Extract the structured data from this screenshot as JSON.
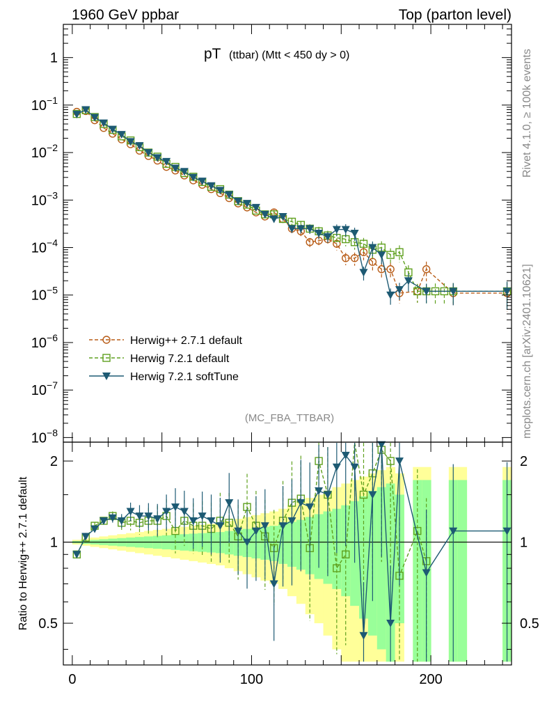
{
  "header": {
    "left": "1960 GeV ppbar",
    "right": "Top (parton level)"
  },
  "side": {
    "top": "Rivet 4.1.0, ≥ 100k events",
    "bottom": "mcplots.cern.ch [arXiv:2401.10621]"
  },
  "colors": {
    "herwigpp": "#b85c17",
    "herwig721": "#5fa01e",
    "softtune": "#1d5a73",
    "band_yellow": "#ffff99",
    "band_green": "#99ff99"
  },
  "chart_data": [
    {
      "id": "main",
      "type": "line",
      "title": "pT",
      "title_suffix": "(ttbar) (Mtt < 450 dy > 0)",
      "watermark": "(MC_FBA_TTBAR)",
      "yscale": "log",
      "xlim": [
        -5,
        245
      ],
      "ylim": [
        8e-09,
        5
      ],
      "yticks": [
        {
          "v": 1,
          "label": "1"
        },
        {
          "v": 0.1,
          "label": "10",
          "exp": "−1"
        },
        {
          "v": 0.01,
          "label": "10",
          "exp": "−2"
        },
        {
          "v": 0.001,
          "label": "10",
          "exp": "−3"
        },
        {
          "v": 0.0001,
          "label": "10",
          "exp": "−4"
        },
        {
          "v": 1e-05,
          "label": "10",
          "exp": "−5"
        },
        {
          "v": 1e-06,
          "label": "10",
          "exp": "−6"
        },
        {
          "v": 1e-07,
          "label": "10",
          "exp": "−7"
        },
        {
          "v": 1e-08,
          "label": "10",
          "exp": "−8"
        }
      ],
      "legend_position": "bottom-left",
      "series": [
        {
          "name": "Herwig++ 2.7.1 default",
          "style": "circle",
          "x": [
            2.5,
            7.5,
            12.5,
            17.5,
            22.5,
            27.5,
            32.5,
            37.5,
            42.5,
            47.5,
            52.5,
            57.5,
            62.5,
            67.5,
            72.5,
            77.5,
            82.5,
            87.5,
            92.5,
            97.5,
            102.5,
            107.5,
            112.5,
            117.5,
            122.5,
            127.5,
            132.5,
            137.5,
            142.5,
            147.5,
            152.5,
            157.5,
            162.5,
            167.5,
            172.5,
            177.5,
            182.5,
            192.5,
            197.5,
            212.5,
            242.5
          ],
          "y": [
            0.072,
            0.075,
            0.048,
            0.033,
            0.025,
            0.019,
            0.015,
            0.011,
            0.0085,
            0.0068,
            0.005,
            0.0042,
            0.0033,
            0.0026,
            0.0021,
            0.0017,
            0.0014,
            0.0011,
            0.00085,
            0.0007,
            0.00055,
            0.00045,
            0.00055,
            0.0004,
            0.00025,
            0.00022,
            0.00013,
            0.00014,
            0.00015,
            0.00012,
            6e-05,
            6e-05,
            8e-05,
            5e-05,
            3.5e-05,
            3.5e-05,
            1.1e-05,
            1.2e-05,
            3.5e-05,
            1.1e-05,
            1.1e-05
          ]
        },
        {
          "name": "Herwig 7.2.1 default",
          "style": "square",
          "x": [
            2.5,
            7.5,
            12.5,
            17.5,
            22.5,
            27.5,
            32.5,
            37.5,
            42.5,
            47.5,
            52.5,
            57.5,
            62.5,
            67.5,
            72.5,
            77.5,
            82.5,
            87.5,
            92.5,
            97.5,
            102.5,
            107.5,
            112.5,
            117.5,
            122.5,
            127.5,
            132.5,
            137.5,
            142.5,
            147.5,
            152.5,
            157.5,
            162.5,
            167.5,
            172.5,
            177.5,
            182.5,
            187.5,
            192.5,
            197.5,
            202.5,
            207.5,
            212.5,
            242.5
          ],
          "y": [
            0.065,
            0.078,
            0.056,
            0.04,
            0.03,
            0.022,
            0.018,
            0.013,
            0.01,
            0.0082,
            0.0058,
            0.005,
            0.0037,
            0.0031,
            0.0024,
            0.0019,
            0.0017,
            0.0013,
            0.00095,
            0.0008,
            0.0006,
            0.0005,
            0.0005,
            0.0004,
            0.00035,
            0.0003,
            0.00025,
            0.00022,
            0.00018,
            0.00016,
            0.00015,
            0.00013,
            0.00012,
            9e-05,
            0.0001,
            7e-05,
            8e-05,
            3e-05,
            1.2e-05,
            1.2e-05,
            1.2e-05,
            1.2e-05,
            1.2e-05,
            1.2e-05
          ]
        },
        {
          "name": "Herwig 7.2.1 softTune",
          "style": "triangle",
          "x": [
            2.5,
            7.5,
            12.5,
            17.5,
            22.5,
            27.5,
            32.5,
            37.5,
            42.5,
            47.5,
            52.5,
            57.5,
            62.5,
            67.5,
            72.5,
            77.5,
            82.5,
            87.5,
            92.5,
            97.5,
            102.5,
            107.5,
            112.5,
            117.5,
            122.5,
            127.5,
            132.5,
            137.5,
            142.5,
            147.5,
            152.5,
            157.5,
            162.5,
            167.5,
            172.5,
            177.5,
            182.5,
            187.5,
            197.5,
            212.5,
            242.5
          ],
          "y": [
            0.064,
            0.08,
            0.055,
            0.042,
            0.031,
            0.024,
            0.017,
            0.014,
            0.01,
            0.0078,
            0.0065,
            0.0047,
            0.004,
            0.003,
            0.0025,
            0.002,
            0.0016,
            0.0013,
            0.00095,
            0.00085,
            0.0007,
            0.0005,
            0.0004,
            0.00045,
            0.00025,
            0.00025,
            0.00025,
            0.0002,
            0.00017,
            0.00024,
            0.00024,
            0.0002,
            3e-05,
            0.0001,
            7e-05,
            1e-05,
            1.3e-05,
            2e-05,
            1.2e-05,
            1.2e-05,
            1.2e-05
          ]
        }
      ]
    },
    {
      "id": "ratio",
      "type": "line",
      "ylabel": "Ratio to Herwig++ 2.7.1 default",
      "yscale": "log",
      "xlim": [
        -5,
        245
      ],
      "ylim": [
        0.35,
        2.35
      ],
      "yticks": [
        {
          "v": 0.5,
          "label": "0.5"
        },
        {
          "v": 1,
          "label": "1"
        },
        {
          "v": 2,
          "label": "2"
        }
      ],
      "xticks": [
        {
          "v": 0,
          "label": "0"
        },
        {
          "v": 100,
          "label": "100"
        },
        {
          "v": 200,
          "label": "200"
        }
      ],
      "reference_line": 1,
      "bands": {
        "x_edges": [
          0,
          5,
          10,
          15,
          20,
          25,
          30,
          35,
          40,
          45,
          50,
          55,
          60,
          65,
          70,
          75,
          80,
          85,
          90,
          95,
          100,
          105,
          110,
          115,
          120,
          125,
          130,
          135,
          140,
          145,
          150,
          155,
          160,
          165,
          170,
          175,
          180,
          185,
          190,
          195,
          200,
          205,
          210,
          215,
          220,
          225,
          230,
          235,
          240,
          245
        ],
        "green_halfwidth": [
          0.01,
          0.015,
          0.02,
          0.025,
          0.03,
          0.035,
          0.04,
          0.045,
          0.05,
          0.055,
          0.06,
          0.065,
          0.07,
          0.075,
          0.08,
          0.085,
          0.09,
          0.1,
          0.11,
          0.12,
          0.13,
          0.14,
          0.15,
          0.17,
          0.19,
          0.21,
          0.24,
          0.27,
          0.3,
          0.33,
          0.37,
          0.42,
          0.48,
          0.55,
          0.6,
          0.65,
          0.5,
          0,
          0.7,
          0.7,
          0,
          0,
          0.7,
          0.7,
          0,
          0,
          0,
          0,
          0.7
        ],
        "yellow_halfwidth": [
          0.02,
          0.03,
          0.04,
          0.05,
          0.06,
          0.07,
          0.08,
          0.09,
          0.1,
          0.11,
          0.12,
          0.13,
          0.14,
          0.15,
          0.16,
          0.17,
          0.18,
          0.2,
          0.22,
          0.24,
          0.26,
          0.28,
          0.3,
          0.33,
          0.37,
          0.41,
          0.46,
          0.5,
          0.55,
          0.6,
          0.65,
          0.7,
          0.75,
          0.8,
          0.85,
          0.9,
          0.8,
          0,
          0.9,
          0.9,
          0,
          0,
          0.9,
          0.9,
          0,
          0,
          0,
          0,
          0.9
        ]
      },
      "series": [
        {
          "name": "Herwig 7.2.1 default",
          "style": "square",
          "x": [
            2.5,
            7.5,
            12.5,
            17.5,
            22.5,
            27.5,
            32.5,
            37.5,
            42.5,
            47.5,
            52.5,
            57.5,
            62.5,
            67.5,
            72.5,
            77.5,
            82.5,
            87.5,
            92.5,
            97.5,
            102.5,
            107.5,
            112.5,
            117.5,
            122.5,
            127.5,
            132.5,
            137.5,
            142.5,
            147.5,
            152.5,
            157.5,
            162.5,
            167.5,
            172.5,
            177.5,
            182.5,
            192.5,
            197.5
          ],
          "y": [
            0.9,
            1.04,
            1.15,
            1.2,
            1.25,
            1.18,
            1.2,
            1.18,
            1.2,
            1.2,
            1.25,
            1.1,
            1.2,
            1.15,
            1.15,
            1.12,
            1.2,
            1.18,
            1.05,
            1.35,
            1.15,
            1.05,
            0.95,
            1.2,
            1.4,
            1.45,
            0.95,
            2.0,
            1.5,
            0.8,
            0.9,
            2.4,
            1.5,
            1.8,
            2.2,
            2.0,
            0.75,
            1.1,
            0.85
          ]
        },
        {
          "name": "Herwig 7.2.1 softTune",
          "style": "triangle",
          "x": [
            2.5,
            7.5,
            12.5,
            17.5,
            22.5,
            27.5,
            32.5,
            37.5,
            42.5,
            47.5,
            52.5,
            57.5,
            62.5,
            67.5,
            72.5,
            77.5,
            82.5,
            87.5,
            92.5,
            97.5,
            102.5,
            107.5,
            112.5,
            117.5,
            122.5,
            127.5,
            132.5,
            137.5,
            142.5,
            147.5,
            152.5,
            157.5,
            162.5,
            167.5,
            172.5,
            177.5,
            182.5,
            197.5,
            212.5,
            242.5
          ],
          "y": [
            0.9,
            1.05,
            1.12,
            1.2,
            1.23,
            1.2,
            1.3,
            1.25,
            1.25,
            1.22,
            1.3,
            1.35,
            1.3,
            1.2,
            1.25,
            1.2,
            1.15,
            1.4,
            1.1,
            1.0,
            1.1,
            1.15,
            0.7,
            1.15,
            1.2,
            1.4,
            1.35,
            1.55,
            1.5,
            1.9,
            2.1,
            1.9,
            0.45,
            1.5,
            2.3,
            0.5,
            2.0,
            0.77,
            1.1,
            1.1
          ]
        }
      ]
    }
  ]
}
